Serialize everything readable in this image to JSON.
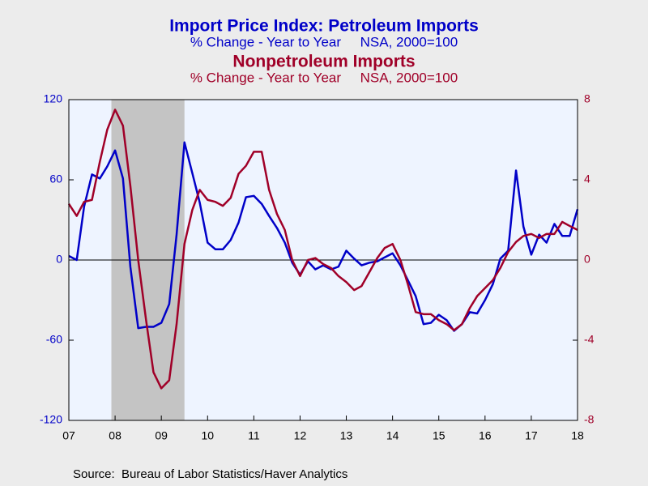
{
  "chart_data": {
    "type": "line",
    "title": "Import Price Index: Petroleum Imports",
    "subtitle": "% Change - Year to Year     NSA, 2000=100",
    "title2": "Nonpetroleum Imports",
    "subtitle2": "% Change - Year to Year     NSA, 2000=100",
    "source": "Source:  Bureau of Labor Statistics/Haver Analytics",
    "xlim": [
      2007,
      2018
    ],
    "xticks": [
      {
        "value": 2007,
        "label": "07"
      },
      {
        "value": 2008,
        "label": "08"
      },
      {
        "value": 2009,
        "label": "09"
      },
      {
        "value": 2010,
        "label": "10"
      },
      {
        "value": 2011,
        "label": "11"
      },
      {
        "value": 2012,
        "label": "12"
      },
      {
        "value": 2013,
        "label": "13"
      },
      {
        "value": 2014,
        "label": "14"
      },
      {
        "value": 2015,
        "label": "15"
      },
      {
        "value": 2016,
        "label": "16"
      },
      {
        "value": 2017,
        "label": "17"
      },
      {
        "value": 2018,
        "label": "18"
      }
    ],
    "ylim": [
      -120,
      120
    ],
    "yticks": [
      -120,
      -60,
      0,
      60,
      120
    ],
    "y2lim": [
      -8,
      8
    ],
    "y2ticks": [
      -8,
      -4,
      0,
      4,
      8
    ],
    "recession": [
      2007.92,
      2009.5
    ],
    "x": [
      2007,
      2007.17,
      2007.33,
      2007.5,
      2007.67,
      2007.83,
      2008,
      2008.17,
      2008.33,
      2008.5,
      2008.67,
      2008.83,
      2009,
      2009.17,
      2009.33,
      2009.5,
      2009.67,
      2009.83,
      2010,
      2010.17,
      2010.33,
      2010.5,
      2010.67,
      2010.83,
      2011,
      2011.17,
      2011.33,
      2011.5,
      2011.67,
      2011.83,
      2012,
      2012.17,
      2012.33,
      2012.5,
      2012.67,
      2012.83,
      2013,
      2013.17,
      2013.33,
      2013.5,
      2013.67,
      2013.83,
      2014,
      2014.17,
      2014.33,
      2014.5,
      2014.67,
      2014.83,
      2015,
      2015.17,
      2015.33,
      2015.5,
      2015.67,
      2015.83,
      2016,
      2016.17,
      2016.33,
      2016.5,
      2016.67,
      2016.83,
      2017,
      2017.17,
      2017.33,
      2017.5,
      2017.67,
      2017.83,
      2018
    ],
    "series": [
      {
        "color": "#0000c8",
        "axis": "y",
        "values": [
          3,
          0,
          40,
          64,
          61,
          70,
          82,
          61,
          -5,
          -51,
          -50,
          -50,
          -47,
          -33,
          19,
          88,
          65,
          43,
          13,
          8,
          8,
          15,
          28,
          47,
          48,
          42,
          33,
          24,
          13,
          -2,
          -11,
          -1,
          -7,
          -4,
          -7,
          -5,
          7,
          1,
          -4,
          -2,
          -1,
          2,
          5,
          -4,
          -15,
          -27,
          -48,
          -47,
          -41,
          -45,
          -53,
          -48,
          -39,
          -40,
          -30,
          -18,
          1,
          7,
          67,
          25,
          4,
          19,
          13,
          27,
          18,
          18,
          38
        ]
      },
      {
        "color": "#a00028",
        "axis": "y2",
        "values": [
          2.8,
          2.2,
          2.9,
          3.0,
          4.9,
          6.5,
          7.5,
          6.7,
          3.7,
          0,
          -3.0,
          -5.6,
          -6.4,
          -6.0,
          -3.2,
          0.8,
          2.5,
          3.5,
          3.0,
          2.9,
          2.7,
          3.1,
          4.3,
          4.7,
          5.4,
          5.4,
          3.5,
          2.3,
          1.5,
          0,
          -0.8,
          0,
          0.1,
          -0.2,
          -0.4,
          -0.8,
          -1.1,
          -1.5,
          -1.3,
          -0.6,
          0.1,
          0.6,
          0.8,
          0,
          -1.2,
          -2.6,
          -2.7,
          -2.7,
          -3.0,
          -3.2,
          -3.5,
          -3.2,
          -2.4,
          -1.8,
          -1.4,
          -1.0,
          -0.4,
          0.4,
          0.9,
          1.2,
          1.3,
          1.1,
          1.3,
          1.3,
          1.9,
          1.7,
          1.5
        ]
      }
    ]
  }
}
